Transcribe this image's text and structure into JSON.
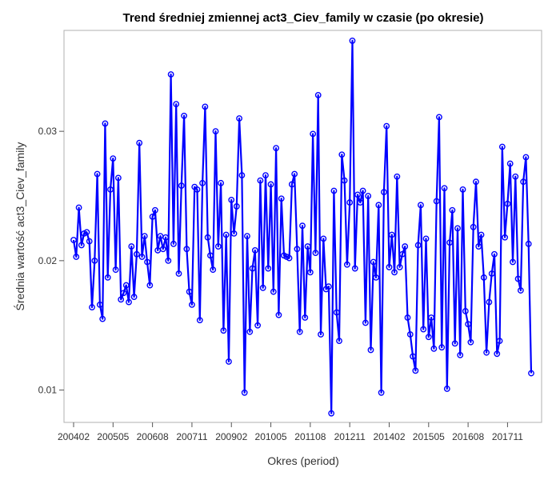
{
  "chart_data": {
    "type": "line",
    "title": "Trend średniej zmiennej act3_Ciev_family w czasie (po okresie)",
    "xlabel": "Okres (period)",
    "ylabel": "Średnia wartość act3_Ciev_family",
    "x_start_label": "200402",
    "x_tick_labels": [
      "200402",
      "200505",
      "200608",
      "200711",
      "200902",
      "201005",
      "201108",
      "201211",
      "201402",
      "201505",
      "201608",
      "201711"
    ],
    "y_tick_labels": [
      "0.01",
      "0.02",
      "0.03"
    ],
    "y_ticks": [
      0.01,
      0.02,
      0.03
    ],
    "ylim": [
      0.0075,
      0.0378
    ],
    "grid": false,
    "legend": "none",
    "line_color": "#0000ff",
    "marker": "open-circle",
    "series": [
      {
        "values": [
          0.0216,
          0.0203,
          0.0241,
          0.0212,
          0.0221,
          0.0222,
          0.0215,
          0.0164,
          0.02,
          0.0267,
          0.0166,
          0.0155,
          0.0306,
          0.0187,
          0.0255,
          0.0279,
          0.0193,
          0.0264,
          0.017,
          0.0175,
          0.0181,
          0.0168,
          0.0211,
          0.0172,
          0.0205,
          0.0291,
          0.0203,
          0.0219,
          0.0199,
          0.0181,
          0.0234,
          0.0239,
          0.0208,
          0.0219,
          0.0209,
          0.0218,
          0.02,
          0.0344,
          0.0213,
          0.0321,
          0.019,
          0.0258,
          0.0312,
          0.0209,
          0.0176,
          0.0166,
          0.0257,
          0.0255,
          0.0154,
          0.026,
          0.0319,
          0.0218,
          0.0204,
          0.0193,
          0.03,
          0.0211,
          0.026,
          0.0146,
          0.022,
          0.0122,
          0.0247,
          0.0221,
          0.0242,
          0.031,
          0.0266,
          0.0098,
          0.0219,
          0.0145,
          0.0194,
          0.0208,
          0.015,
          0.0262,
          0.0179,
          0.0266,
          0.0194,
          0.0259,
          0.0176,
          0.0287,
          0.0158,
          0.0248,
          0.0204,
          0.0203,
          0.0202,
          0.0259,
          0.0267,
          0.0209,
          0.0145,
          0.0227,
          0.0156,
          0.0211,
          0.0191,
          0.0298,
          0.0206,
          0.0328,
          0.0143,
          0.0217,
          0.0178,
          0.018,
          0.0082,
          0.0254,
          0.016,
          0.0138,
          0.0282,
          0.0262,
          0.0197,
          0.0245,
          0.037,
          0.0194,
          0.0251,
          0.0245,
          0.0254,
          0.0152,
          0.025,
          0.0131,
          0.0199,
          0.0187,
          0.0243,
          0.0098,
          0.0253,
          0.0304,
          0.0195,
          0.022,
          0.0191,
          0.0265,
          0.0195,
          0.0205,
          0.0211,
          0.0156,
          0.0143,
          0.0126,
          0.0115,
          0.0212,
          0.0243,
          0.0147,
          0.0217,
          0.0141,
          0.0156,
          0.0132,
          0.0246,
          0.0311,
          0.0133,
          0.0256,
          0.0101,
          0.0214,
          0.0239,
          0.0136,
          0.0225,
          0.0127,
          0.0255,
          0.0161,
          0.0151,
          0.0137,
          0.0226,
          0.0261,
          0.0211,
          0.022,
          0.0187,
          0.0129,
          0.0168,
          0.019,
          0.0205,
          0.0128,
          0.0138,
          0.0288,
          0.0218,
          0.0244,
          0.0275,
          0.0199,
          0.0265,
          0.0186,
          0.0177,
          0.0261,
          0.028,
          0.0213,
          0.0113
        ]
      }
    ]
  }
}
